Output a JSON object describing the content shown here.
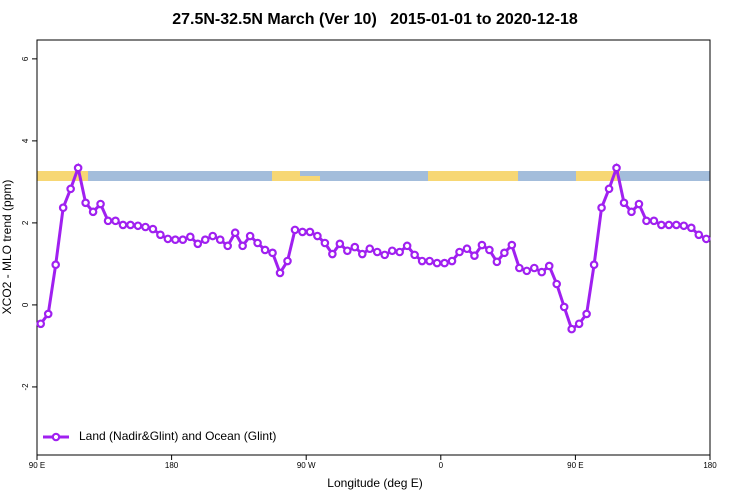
{
  "chart_data": {
    "type": "line",
    "title": "27.5N-32.5N March (Ver 10)   2015-01-01 to 2020-12-18",
    "xlabel": "Longitude (deg E)",
    "ylabel": "XCO2 - MLO trend (ppm)",
    "x": [
      92.5,
      97.5,
      102.5,
      107.5,
      112.5,
      117.5,
      122.5,
      127.5,
      132.5,
      137.5,
      142.5,
      147.5,
      152.5,
      157.5,
      162.5,
      167.5,
      172.5,
      177.5,
      182.5,
      187.5,
      192.5,
      197.5,
      202.5,
      207.5,
      212.5,
      217.5,
      222.5,
      227.5,
      232.5,
      237.5,
      242.5,
      247.5,
      252.5,
      257.5,
      262.5,
      267.5,
      272.5,
      277.5,
      282.5,
      287.5,
      292.5,
      297.5,
      302.5,
      307.5,
      312.5,
      317.5,
      322.5,
      327.5,
      332.5,
      337.5,
      342.5,
      347.5,
      352.5,
      357.5,
      362.5,
      367.5,
      372.5,
      377.5,
      382.5,
      387.5,
      392.5,
      397.5,
      402.5,
      407.5,
      412.5,
      417.5,
      422.5,
      427.5,
      432.5,
      437.5,
      442.5,
      447.5,
      452.5,
      457.5,
      462.5,
      467.5,
      472.5,
      477.5,
      482.5,
      487.5,
      492.5,
      497.5,
      502.5,
      507.5,
      512.5,
      517.5,
      522.5,
      527.5,
      532.5,
      537.5
    ],
    "series": [
      {
        "name": "Land (Nadir&Glint) and Ocean (Glint)",
        "color": "#a020f0",
        "values": [
          -0.46,
          -0.22,
          0.98,
          2.37,
          2.83,
          3.34,
          2.49,
          2.27,
          2.46,
          2.05,
          2.05,
          1.95,
          1.95,
          1.93,
          1.9,
          1.85,
          1.71,
          1.61,
          1.59,
          1.59,
          1.66,
          1.49,
          1.59,
          1.68,
          1.59,
          1.44,
          1.76,
          1.44,
          1.68,
          1.51,
          1.34,
          1.27,
          0.78,
          1.07,
          1.83,
          1.78,
          1.78,
          1.68,
          1.51,
          1.24,
          1.49,
          1.32,
          1.41,
          1.24,
          1.37,
          1.29,
          1.22,
          1.32,
          1.29,
          1.44,
          1.22,
          1.07,
          1.07,
          1.02,
          1.02,
          1.07,
          1.29,
          1.37,
          1.2,
          1.46,
          1.34,
          1.05,
          1.27,
          1.46,
          0.9,
          0.83,
          0.9,
          0.8,
          0.95,
          0.51,
          -0.05,
          -0.59,
          -0.46,
          -0.22,
          0.98,
          2.37,
          2.83,
          3.34,
          2.49,
          2.27,
          2.46,
          2.05,
          2.05,
          1.95,
          1.95,
          1.95,
          1.93,
          1.88,
          1.71,
          1.61
        ]
      }
    ],
    "xlim": [
      90,
      540
    ],
    "xticks": [
      {
        "value": 90,
        "label": "90 E"
      },
      {
        "value": 180,
        "label": "180"
      },
      {
        "value": 270,
        "label": "90 W"
      },
      {
        "value": 360,
        "label": "0"
      },
      {
        "value": 450,
        "label": "90 E"
      },
      {
        "value": 540,
        "label": "180"
      }
    ],
    "ylim": [
      -3.66,
      6.46
    ],
    "yticks": [
      -2,
      0,
      2,
      4,
      6
    ],
    "legend": "bottom-left"
  }
}
